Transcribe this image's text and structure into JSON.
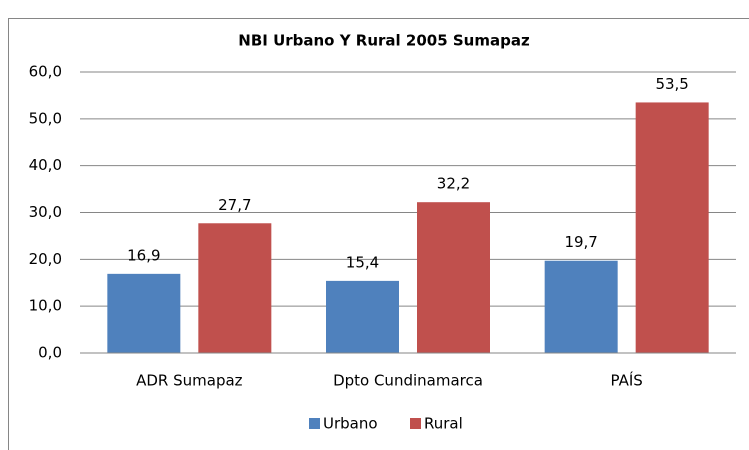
{
  "chart_data": {
    "type": "bar",
    "title": "NBI Urbano Y Rural 2005 Sumapaz",
    "categories": [
      "ADR Sumapaz",
      "Dpto Cundinamarca",
      "PAÍS"
    ],
    "series": [
      {
        "name": "Urbano",
        "color": "#4f81bd",
        "values": [
          16.9,
          15.4,
          19.7
        ],
        "value_labels": [
          "16,9",
          "15,4",
          "19,7"
        ]
      },
      {
        "name": "Rural",
        "color": "#c0504d",
        "values": [
          27.7,
          32.2,
          53.5
        ],
        "value_labels": [
          "27,7",
          "32,2",
          "53,5"
        ]
      }
    ],
    "ylim": [
      0,
      60
    ],
    "yticks": [
      {
        "value": 0,
        "label": "0,0"
      },
      {
        "value": 10,
        "label": "10,0"
      },
      {
        "value": 20,
        "label": "20,0"
      },
      {
        "value": 30,
        "label": "30,0"
      },
      {
        "value": 40,
        "label": "40,0"
      },
      {
        "value": 50,
        "label": "50,0"
      },
      {
        "value": 60,
        "label": "60,0"
      }
    ],
    "grid": true,
    "legend": "bottom"
  }
}
